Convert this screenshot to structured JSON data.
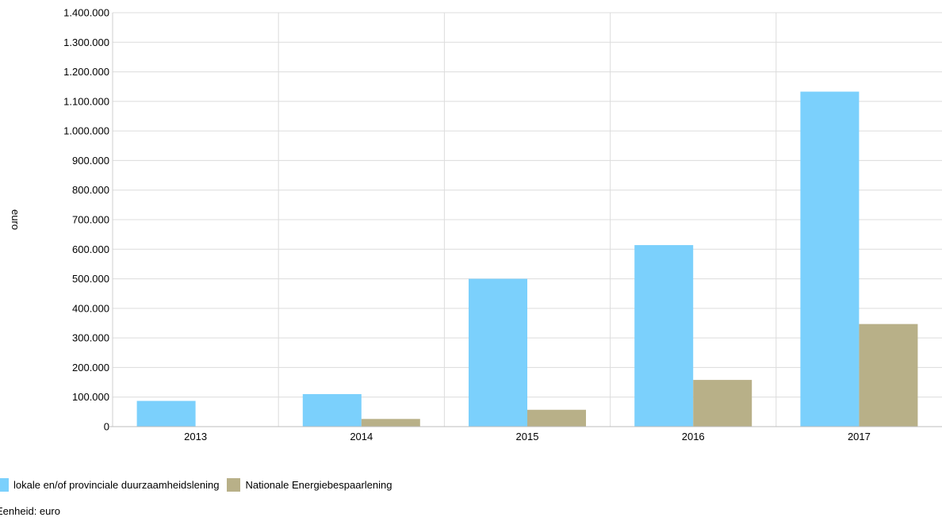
{
  "chart_data": {
    "type": "bar",
    "categories": [
      "2013",
      "2014",
      "2015",
      "2016",
      "2017"
    ],
    "series": [
      {
        "name": "lokale en/of provinciale duurzaamheidslening",
        "color": "#7bd0fc",
        "values": [
          87000,
          110000,
          500000,
          614000,
          1133000
        ]
      },
      {
        "name": "Nationale Energiebespaarlening",
        "color": "#b8b088",
        "values": [
          0,
          26000,
          57000,
          158000,
          347000
        ]
      }
    ],
    "ylabel": "euro",
    "ylim": [
      0,
      1400000
    ],
    "yticks": [
      0,
      100000,
      200000,
      300000,
      400000,
      500000,
      600000,
      700000,
      800000,
      900000,
      1000000,
      1100000,
      1200000,
      1300000,
      1400000
    ],
    "ytick_labels": [
      "0",
      "100.000",
      "200.000",
      "300.000",
      "400.000",
      "500.000",
      "600.000",
      "700.000",
      "800.000",
      "900.000",
      "1.000.000",
      "1.100.000",
      "1.200.000",
      "1.300.000",
      "1.400.000"
    ],
    "grid": true,
    "legend_position": "bottom-left"
  },
  "footer": {
    "unit_note": "Eenheid: euro"
  }
}
